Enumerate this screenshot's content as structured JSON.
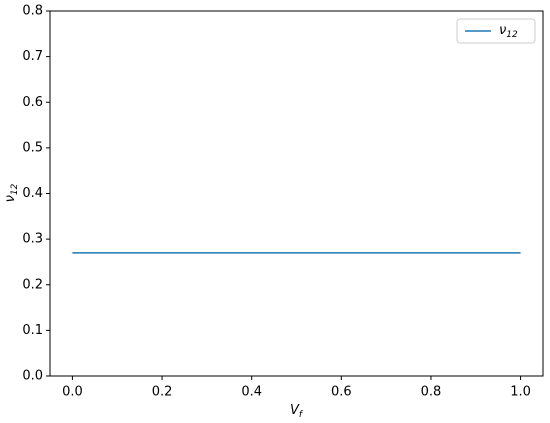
{
  "chart_data": {
    "type": "line",
    "xlabel": "Vf",
    "ylabel": "ν12",
    "x": [
      0,
      1
    ],
    "series": [
      {
        "name": "ν12",
        "color": "#1f77b4",
        "values": [
          0.27,
          0.27
        ]
      }
    ],
    "xlim": [
      -0.05,
      1.05
    ],
    "xticks": [
      {
        "value": 0,
        "label": "0.0"
      },
      0.2,
      0.4,
      0.6,
      0.8,
      {
        "value": 1,
        "label": "1.0"
      }
    ],
    "ylim": [
      0,
      0.8
    ],
    "yticks": [
      {
        "value": 0,
        "label": "0.0"
      },
      0.1,
      0.2,
      0.3,
      0.4,
      0.5,
      0.6,
      0.7,
      0.8
    ],
    "legend": "upper right",
    "grid": false
  }
}
